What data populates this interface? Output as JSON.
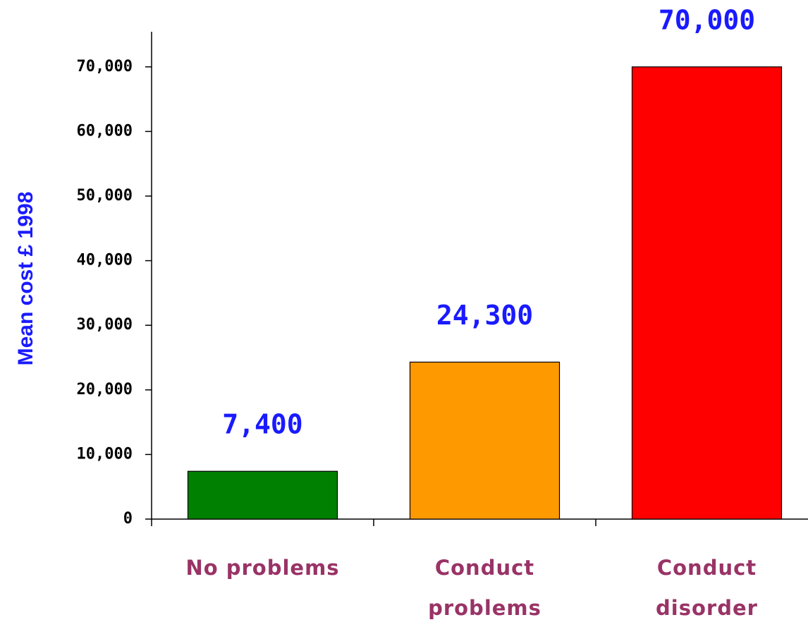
{
  "chart_data": {
    "type": "bar",
    "y_label": "Mean cost £ 1998",
    "categories": [
      "No problems",
      "Conduct problems",
      "Conduct disorder"
    ],
    "values": [
      7400,
      24300,
      70000
    ],
    "value_labels": [
      "7,400",
      "24,300",
      "70,000"
    ],
    "colors": [
      "#008000",
      "#ff9900",
      "#ff0000"
    ],
    "ylim": [
      0,
      75000
    ],
    "yticks": [
      0,
      {
        "value": 10000,
        "label": "10,000"
      },
      {
        "value": 20000,
        "label": "20,000"
      },
      {
        "value": 30000,
        "label": "30,000"
      },
      {
        "value": 40000,
        "label": "40,000"
      },
      {
        "value": 50000,
        "label": "50,000"
      },
      {
        "value": 60000,
        "label": "60,000"
      },
      {
        "value": 70000,
        "label": "70,000"
      }
    ]
  }
}
